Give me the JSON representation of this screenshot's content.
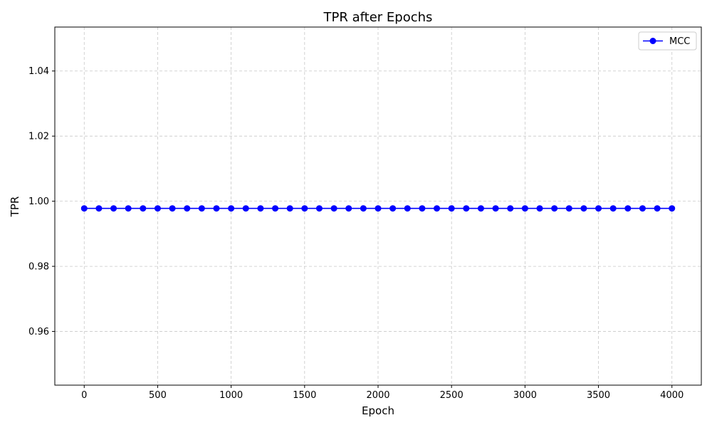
{
  "chart_data": {
    "type": "line",
    "title": "TPR after Epochs",
    "xlabel": "Epoch",
    "ylabel": "TPR",
    "xlim": [
      -200,
      4200
    ],
    "ylim": [
      0.9435,
      1.0535
    ],
    "xticks": [
      0,
      500,
      1000,
      1500,
      2000,
      2500,
      3000,
      3500,
      4000
    ],
    "xtick_labels": [
      "0",
      "500",
      "1000",
      "1500",
      "2000",
      "2500",
      "3000",
      "3500",
      "4000"
    ],
    "yticks": [
      0.96,
      0.98,
      1.0,
      1.02,
      1.04
    ],
    "ytick_labels": [
      "0.96",
      "0.98",
      "1.00",
      "1.02",
      "1.04"
    ],
    "grid": true,
    "grid_style": "dashed",
    "legend_position": "top-right",
    "series": [
      {
        "name": "MCC",
        "color": "#0000ff",
        "marker": "circle",
        "x": [
          0,
          100,
          200,
          300,
          400,
          500,
          600,
          700,
          800,
          900,
          1000,
          1100,
          1200,
          1300,
          1400,
          1500,
          1600,
          1700,
          1800,
          1900,
          2000,
          2100,
          2200,
          2300,
          2400,
          2500,
          2600,
          2700,
          2800,
          2900,
          3000,
          3100,
          3200,
          3300,
          3400,
          3500,
          3600,
          3700,
          3800,
          3900,
          4000
        ],
        "y": [
          0.9978,
          0.9978,
          0.9978,
          0.9978,
          0.9978,
          0.9978,
          0.9978,
          0.9978,
          0.9978,
          0.9978,
          0.9978,
          0.9978,
          0.9978,
          0.9978,
          0.9978,
          0.9978,
          0.9978,
          0.9978,
          0.9978,
          0.9978,
          0.9978,
          0.9978,
          0.9978,
          0.9978,
          0.9978,
          0.9978,
          0.9978,
          0.9978,
          0.9978,
          0.9978,
          0.9978,
          0.9978,
          0.9978,
          0.9978,
          0.9978,
          0.9978,
          0.9978,
          0.9978,
          0.9978,
          0.9978,
          0.9978
        ]
      }
    ]
  }
}
